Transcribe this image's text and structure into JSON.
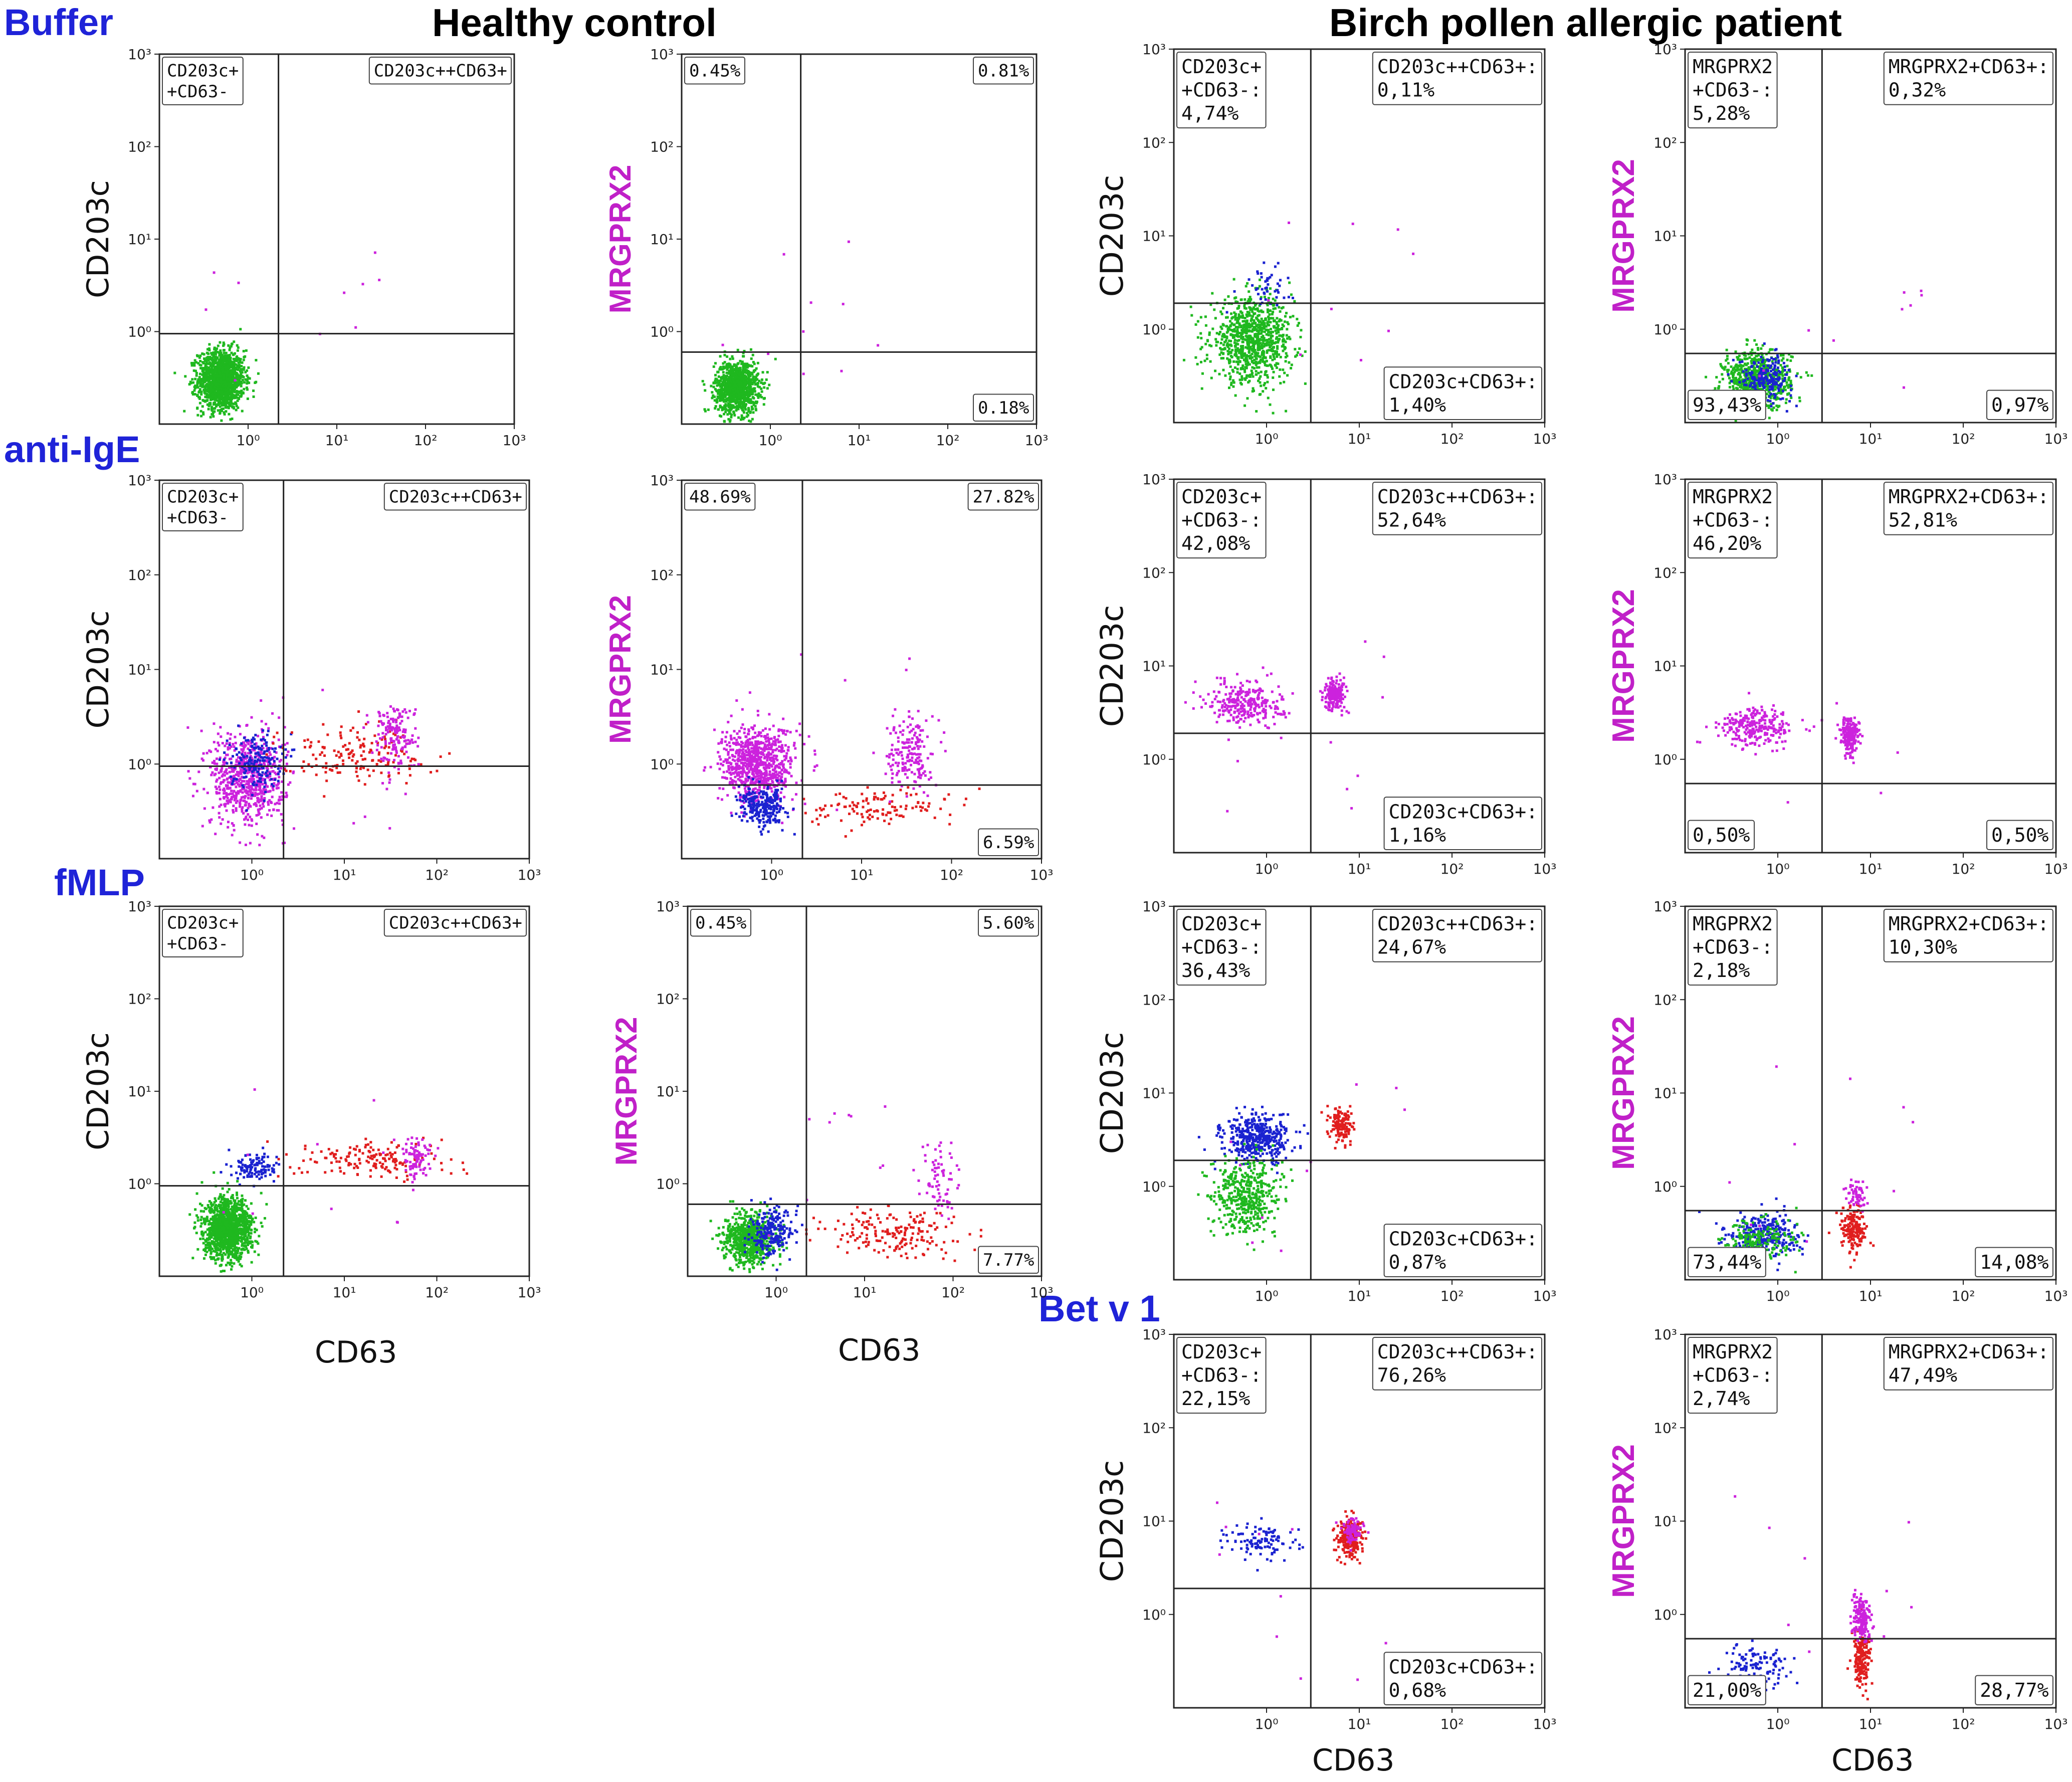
{
  "figure": {
    "group_labels": [
      "Healthy control",
      "Birch pollen allergic patient"
    ],
    "row_labels": [
      "Buffer",
      "anti-IgE",
      "fMLP",
      "Bet v 1"
    ],
    "x_axis_label": "CD63",
    "colors": {
      "row_label": "#1f23d8",
      "magenta_axis": "#c020c8",
      "q_upper_left": "#1a22d0",
      "q_upper_right": "#e01e1e",
      "q_lower_left": "#1fb81f",
      "magenta_points": "#cc22dd",
      "gray_points": "#b8b8b8"
    }
  },
  "chart_data": [
    {
      "id": "hc-buffer-cd203c",
      "type": "scatter",
      "panel": "Healthy control / Buffer",
      "xlabel": "",
      "ylabel": "CD203c",
      "scale": "log",
      "xlim": [
        0.1,
        1000
      ],
      "ylim": [
        0.1,
        1000
      ],
      "x_ticks": [
        "10⁰",
        "10¹",
        "10²",
        "10³"
      ],
      "y_ticks": [
        "10⁰",
        "10¹",
        "10²",
        "10³"
      ],
      "gate": {
        "x": 2.2,
        "y": 0.95
      },
      "quadrant_labels": {
        "ul": "CD203c+\n+CD63-",
        "ur": "CD203c++CD63+"
      },
      "populations": [
        {
          "color": "green",
          "n": 1400,
          "cx": 0.5,
          "cy": 0.3,
          "sx": 0.13,
          "sy": 0.16
        }
      ]
    },
    {
      "id": "hc-buffer-mrgprx2",
      "type": "scatter",
      "panel": "Healthy control / Buffer",
      "xlabel": "",
      "ylabel": "MRGPRX2",
      "scale": "log",
      "xlim": [
        0.1,
        1000
      ],
      "ylim": [
        0.1,
        1000
      ],
      "x_ticks": [
        "10⁰",
        "10¹",
        "10²",
        "10³"
      ],
      "y_ticks": [
        "10⁰",
        "10¹",
        "10²",
        "10³"
      ],
      "gate": {
        "x": 2.2,
        "y": 0.6
      },
      "quadrant_labels": {
        "ul": "0.45%",
        "ur": "0.81%",
        "lr": "0.18%"
      },
      "populations": [
        {
          "color": "green",
          "n": 1100,
          "cx": 0.42,
          "cy": 0.25,
          "sx": 0.12,
          "sy": 0.14
        }
      ]
    },
    {
      "id": "pt-buffer-cd203c",
      "type": "scatter",
      "panel": "Birch pollen allergic patient / Buffer",
      "xlabel": "",
      "ylabel": "CD203c",
      "scale": "log",
      "xlim": [
        0.1,
        1000
      ],
      "ylim": [
        0.1,
        1000
      ],
      "x_ticks": [
        "10⁰",
        "10¹",
        "10²",
        "10³"
      ],
      "y_ticks": [
        "10⁰",
        "10¹",
        "10²",
        "10³"
      ],
      "gate": {
        "x": 3.0,
        "y": 1.9
      },
      "quadrant_labels": {
        "ul": "CD203c+\n+CD63-:\n4,74%",
        "ur": "CD203c++CD63+:\n0,11%",
        "lr": "CD203c+CD63+:\n1,40%"
      },
      "populations": [
        {
          "color": "green",
          "n": 900,
          "cx": 0.7,
          "cy": 0.75,
          "sx": 0.22,
          "sy": 0.22
        },
        {
          "color": "blue",
          "n": 45,
          "cx": 0.9,
          "cy": 3.0,
          "sx": 0.16,
          "sy": 0.12
        }
      ]
    },
    {
      "id": "pt-buffer-mrgprx2",
      "type": "scatter",
      "panel": "Birch pollen allergic patient / Buffer",
      "xlabel": "",
      "ylabel": "MRGPRX2",
      "scale": "log",
      "xlim": [
        0.1,
        1000
      ],
      "ylim": [
        0.1,
        1000
      ],
      "x_ticks": [
        "10⁰",
        "10¹",
        "10²",
        "10³"
      ],
      "y_ticks": [
        "10⁰",
        "10¹",
        "10²",
        "10³"
      ],
      "gate": {
        "x": 3.0,
        "y": 0.55
      },
      "quadrant_labels": {
        "ul": "MRGPRX2\n+CD63-:\n5,28%",
        "ur": "MRGPRX2+CD63+:\n0,32%",
        "ll": "93,43%",
        "lr": "0,97%"
      },
      "populations": [
        {
          "color": "green",
          "n": 700,
          "cx": 0.6,
          "cy": 0.28,
          "sx": 0.18,
          "sy": 0.16
        },
        {
          "color": "blue",
          "n": 220,
          "cx": 0.75,
          "cy": 0.3,
          "sx": 0.14,
          "sy": 0.12
        }
      ]
    },
    {
      "id": "hc-antiige-cd203c",
      "type": "scatter",
      "panel": "Healthy control / anti-IgE",
      "xlabel": "",
      "ylabel": "CD203c",
      "scale": "log",
      "xlim": [
        0.1,
        1000
      ],
      "ylim": [
        0.1,
        1000
      ],
      "x_ticks": [
        "10⁰",
        "10¹",
        "10²",
        "10³"
      ],
      "y_ticks": [
        "10⁰",
        "10¹",
        "10²",
        "10³"
      ],
      "gate": {
        "x": 2.2,
        "y": 0.95
      },
      "quadrant_labels": {
        "ul": "CD203c+\n+CD63-",
        "ur": "CD203c++CD63+"
      },
      "populations": [
        {
          "color": "magenta",
          "n": 700,
          "cx": 0.9,
          "cy": 0.7,
          "sx": 0.2,
          "sy": 0.25
        },
        {
          "color": "blue",
          "n": 180,
          "cx": 1.1,
          "cy": 1.1,
          "sx": 0.14,
          "sy": 0.15
        },
        {
          "color": "red",
          "n": 160,
          "cx": 12,
          "cy": 1.3,
          "sx": 0.4,
          "sy": 0.15
        },
        {
          "color": "magenta",
          "n": 160,
          "cx": 35,
          "cy": 2.0,
          "sx": 0.12,
          "sy": 0.18
        }
      ]
    },
    {
      "id": "hc-antiige-mrgprx2",
      "type": "scatter",
      "panel": "Healthy control / anti-IgE",
      "xlabel": "",
      "ylabel": "MRGPRX2",
      "scale": "log",
      "xlim": [
        0.1,
        1000
      ],
      "ylim": [
        0.1,
        1000
      ],
      "x_ticks": [
        "10⁰",
        "10¹",
        "10²",
        "10³"
      ],
      "y_ticks": [
        "10⁰",
        "10¹",
        "10²",
        "10³"
      ],
      "gate": {
        "x": 2.2,
        "y": 0.6
      },
      "quadrant_labels": {
        "ul": "48.69%",
        "ur": "27.82%",
        "lr": "6.59%"
      },
      "populations": [
        {
          "color": "magenta",
          "n": 800,
          "cx": 0.7,
          "cy": 1.0,
          "sx": 0.2,
          "sy": 0.2
        },
        {
          "color": "blue",
          "n": 250,
          "cx": 0.8,
          "cy": 0.35,
          "sx": 0.13,
          "sy": 0.1
        },
        {
          "color": "red",
          "n": 120,
          "cx": 15,
          "cy": 0.35,
          "sx": 0.4,
          "sy": 0.1
        },
        {
          "color": "magenta",
          "n": 180,
          "cx": 35,
          "cy": 1.3,
          "sx": 0.12,
          "sy": 0.2
        }
      ]
    },
    {
      "id": "pt-antiige-cd203c",
      "type": "scatter",
      "panel": "Birch pollen allergic patient / anti-IgE",
      "xlabel": "",
      "ylabel": "CD203c",
      "scale": "log",
      "xlim": [
        0.1,
        1000
      ],
      "ylim": [
        0.1,
        1000
      ],
      "x_ticks": [
        "10⁰",
        "10¹",
        "10²",
        "10³"
      ],
      "y_ticks": [
        "10⁰",
        "10¹",
        "10²",
        "10³"
      ],
      "gate": {
        "x": 3.0,
        "y": 1.9
      },
      "quadrant_labels": {
        "ul": "CD203c+\n+CD63-:\n42,08%",
        "ur": "CD203c++CD63+:\n52,64%",
        "lr": "CD203c+CD63+:\n1,16%"
      },
      "populations": [
        {
          "color": "magenta",
          "n": 280,
          "cx": 0.6,
          "cy": 4.0,
          "sx": 0.2,
          "sy": 0.12
        },
        {
          "color": "magenta",
          "n": 200,
          "cx": 5.5,
          "cy": 5.0,
          "sx": 0.06,
          "sy": 0.08
        }
      ]
    },
    {
      "id": "pt-antiige-mrgprx2",
      "type": "scatter",
      "panel": "Birch pollen allergic patient / anti-IgE",
      "xlabel": "",
      "ylabel": "MRGPRX2",
      "scale": "log",
      "xlim": [
        0.1,
        1000
      ],
      "ylim": [
        0.1,
        1000
      ],
      "x_ticks": [
        "10⁰",
        "10¹",
        "10²",
        "10³"
      ],
      "y_ticks": [
        "10⁰",
        "10¹",
        "10²",
        "10³"
      ],
      "gate": {
        "x": 3.0,
        "y": 0.55
      },
      "quadrant_labels": {
        "ul": "MRGPRX2\n+CD63-:\n46,20%",
        "ur": "MRGPRX2+CD63+:\n52,81%",
        "ll": "0,50%",
        "lr": "0,50%"
      },
      "populations": [
        {
          "color": "magenta",
          "n": 260,
          "cx": 0.6,
          "cy": 2.2,
          "sx": 0.2,
          "sy": 0.1
        },
        {
          "color": "magenta",
          "n": 200,
          "cx": 6.0,
          "cy": 1.8,
          "sx": 0.05,
          "sy": 0.1
        }
      ]
    },
    {
      "id": "hc-fmlp-cd203c",
      "type": "scatter",
      "panel": "Healthy control / fMLP",
      "xlabel": "CD63",
      "ylabel": "CD203c",
      "scale": "log",
      "xlim": [
        0.1,
        1000
      ],
      "ylim": [
        0.1,
        1000
      ],
      "x_ticks": [
        "10⁰",
        "10¹",
        "10²",
        "10³"
      ],
      "y_ticks": [
        "10⁰",
        "10¹",
        "10²",
        "10³"
      ],
      "gate": {
        "x": 2.2,
        "y": 0.95
      },
      "quadrant_labels": {
        "ul": "CD203c+\n+CD63-",
        "ur": "CD203c++CD63+"
      },
      "populations": [
        {
          "color": "green",
          "n": 1300,
          "cx": 0.55,
          "cy": 0.32,
          "sx": 0.13,
          "sy": 0.16
        },
        {
          "color": "blue",
          "n": 120,
          "cx": 1.1,
          "cy": 1.5,
          "sx": 0.12,
          "sy": 0.08
        },
        {
          "color": "red",
          "n": 160,
          "cx": 20,
          "cy": 1.8,
          "sx": 0.4,
          "sy": 0.1
        },
        {
          "color": "magenta",
          "n": 90,
          "cx": 60,
          "cy": 2.0,
          "sx": 0.08,
          "sy": 0.12
        }
      ]
    },
    {
      "id": "hc-fmlp-mrgprx2",
      "type": "scatter",
      "panel": "Healthy control / fMLP",
      "xlabel": "CD63",
      "ylabel": "MRGPRX2",
      "scale": "log",
      "xlim": [
        0.1,
        1000
      ],
      "ylim": [
        0.1,
        1000
      ],
      "x_ticks": [
        "10⁰",
        "10¹",
        "10²",
        "10³"
      ],
      "y_ticks": [
        "10⁰",
        "10¹",
        "10²",
        "10³"
      ],
      "gate": {
        "x": 2.2,
        "y": 0.6
      },
      "quadrant_labels": {
        "ul": "0.45%",
        "ur": "5.60%",
        "lr": "7.77%"
      },
      "populations": [
        {
          "color": "green",
          "n": 700,
          "cx": 0.5,
          "cy": 0.25,
          "sx": 0.14,
          "sy": 0.14
        },
        {
          "color": "blue",
          "n": 220,
          "cx": 0.9,
          "cy": 0.3,
          "sx": 0.12,
          "sy": 0.12
        },
        {
          "color": "red",
          "n": 180,
          "cx": 20,
          "cy": 0.3,
          "sx": 0.4,
          "sy": 0.14
        },
        {
          "color": "magenta",
          "n": 70,
          "cx": 70,
          "cy": 1.0,
          "sx": 0.1,
          "sy": 0.2
        }
      ]
    },
    {
      "id": "pt-fmlp-cd203c",
      "type": "scatter",
      "panel": "Birch pollen allergic patient / fMLP",
      "xlabel": "",
      "ylabel": "CD203c",
      "scale": "log",
      "xlim": [
        0.1,
        1000
      ],
      "ylim": [
        0.1,
        1000
      ],
      "x_ticks": [
        "10⁰",
        "10¹",
        "10²",
        "10³"
      ],
      "y_ticks": [
        "10⁰",
        "10¹",
        "10²",
        "10³"
      ],
      "gate": {
        "x": 3.0,
        "y": 1.9
      },
      "quadrant_labels": {
        "ul": "CD203c+\n+CD63-:\n36,43%",
        "ur": "CD203c++CD63+:\n24,67%",
        "lr": "CD203c+CD63+:\n0,87%"
      },
      "populations": [
        {
          "color": "blue",
          "n": 420,
          "cx": 0.8,
          "cy": 3.3,
          "sx": 0.18,
          "sy": 0.12
        },
        {
          "color": "green",
          "n": 450,
          "cx": 0.6,
          "cy": 0.8,
          "sx": 0.18,
          "sy": 0.2
        },
        {
          "color": "red",
          "n": 140,
          "cx": 6.5,
          "cy": 4.5,
          "sx": 0.06,
          "sy": 0.1
        }
      ]
    },
    {
      "id": "pt-fmlp-mrgprx2",
      "type": "scatter",
      "panel": "Birch pollen allergic patient / fMLP",
      "xlabel": "",
      "ylabel": "MRGPRX2",
      "scale": "log",
      "xlim": [
        0.1,
        1000
      ],
      "ylim": [
        0.1,
        1000
      ],
      "x_ticks": [
        "10⁰",
        "10¹",
        "10²",
        "10³"
      ],
      "y_ticks": [
        "10⁰",
        "10¹",
        "10²",
        "10³"
      ],
      "gate": {
        "x": 3.0,
        "y": 0.55
      },
      "quadrant_labels": {
        "ul": "MRGPRX2\n+CD63-:\n2,18%",
        "ur": "MRGPRX2+CD63+:\n10,30%",
        "ll": "73,44%",
        "lr": "14,08%"
      },
      "populations": [
        {
          "color": "blue",
          "n": 300,
          "cx": 0.7,
          "cy": 0.3,
          "sx": 0.2,
          "sy": 0.12
        },
        {
          "color": "green",
          "n": 180,
          "cx": 0.6,
          "cy": 0.25,
          "sx": 0.2,
          "sy": 0.12
        },
        {
          "color": "red",
          "n": 180,
          "cx": 6.5,
          "cy": 0.35,
          "sx": 0.07,
          "sy": 0.12
        },
        {
          "color": "magenta",
          "n": 60,
          "cx": 7.0,
          "cy": 0.8,
          "sx": 0.06,
          "sy": 0.08
        }
      ]
    },
    {
      "id": "pt-betv1-cd203c",
      "type": "scatter",
      "panel": "Birch pollen allergic patient / Bet v 1",
      "xlabel": "CD63",
      "ylabel": "CD203c",
      "scale": "log",
      "xlim": [
        0.1,
        1000
      ],
      "ylim": [
        0.1,
        1000
      ],
      "x_ticks": [
        "10⁰",
        "10¹",
        "10²",
        "10³"
      ],
      "y_ticks": [
        "10⁰",
        "10¹",
        "10²",
        "10³"
      ],
      "gate": {
        "x": 3.0,
        "y": 1.9
      },
      "quadrant_labels": {
        "ul": "CD203c+\n+CD63-:\n22,15%",
        "ur": "CD203c++CD63+:\n76,26%",
        "lr": "CD203c+CD63+:\n0,68%"
      },
      "populations": [
        {
          "color": "blue",
          "n": 110,
          "cx": 0.9,
          "cy": 6.0,
          "sx": 0.18,
          "sy": 0.1
        },
        {
          "color": "red",
          "n": 260,
          "cx": 8.0,
          "cy": 6.5,
          "sx": 0.07,
          "sy": 0.1
        },
        {
          "color": "magenta",
          "n": 90,
          "cx": 8.5,
          "cy": 8.0,
          "sx": 0.05,
          "sy": 0.08
        }
      ]
    },
    {
      "id": "pt-betv1-mrgprx2",
      "type": "scatter",
      "panel": "Birch pollen allergic patient / Bet v 1",
      "xlabel": "CD63",
      "ylabel": "MRGPRX2",
      "scale": "log",
      "xlim": [
        0.1,
        1000
      ],
      "ylim": [
        0.1,
        1000
      ],
      "x_ticks": [
        "10⁰",
        "10¹",
        "10²",
        "10³"
      ],
      "y_ticks": [
        "10⁰",
        "10¹",
        "10²",
        "10³"
      ],
      "gate": {
        "x": 3.0,
        "y": 0.55
      },
      "quadrant_labels": {
        "ul": "MRGPRX2\n+CD63-:\n2,74%",
        "ur": "MRGPRX2+CD63+:\n47,49%",
        "ll": "21,00%",
        "lr": "28,77%"
      },
      "populations": [
        {
          "color": "blue",
          "n": 110,
          "cx": 0.6,
          "cy": 0.28,
          "sx": 0.18,
          "sy": 0.12
        },
        {
          "color": "red",
          "n": 200,
          "cx": 8.0,
          "cy": 0.35,
          "sx": 0.05,
          "sy": 0.15
        },
        {
          "color": "magenta",
          "n": 170,
          "cx": 8.0,
          "cy": 0.9,
          "sx": 0.05,
          "sy": 0.12
        }
      ]
    }
  ]
}
